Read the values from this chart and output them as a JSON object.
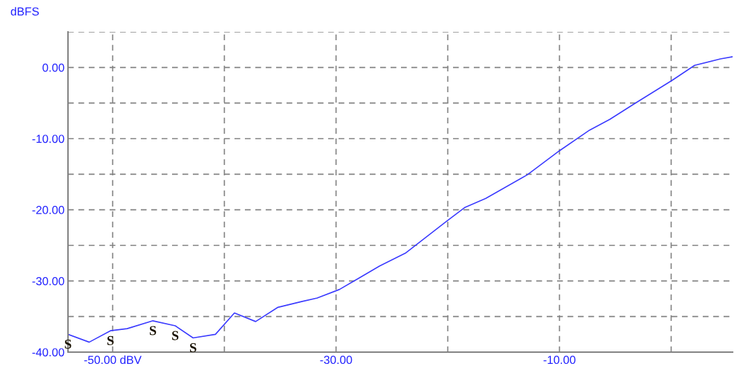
{
  "chart_data": {
    "type": "line",
    "ylabel": "dBFS",
    "series": [
      {
        "color": "#3a3aff",
        "x": [
          -54,
          -52.1,
          -50.2,
          -48.7,
          -46.4,
          -44.4,
          -42.8,
          -40.8,
          -39.1,
          -37.2,
          -35.2,
          -33.1,
          -31.7,
          -29.7,
          -26.1,
          -23.8,
          -20.1,
          -18.5,
          -16.6,
          -12.9,
          -10,
          -7.3,
          -5.5,
          -3.3,
          0.1,
          2.1,
          4.4,
          5.5
        ],
        "values": [
          -37.5,
          -38.6,
          -37.0,
          -36.7,
          -35.6,
          -36.3,
          -38.0,
          -37.5,
          -34.5,
          -35.7,
          -33.7,
          -32.9,
          -32.4,
          -31.2,
          -27.9,
          -26.1,
          -21.6,
          -19.7,
          -18.4,
          -15.1,
          -11.7,
          -8.8,
          -7.3,
          -5.1,
          -1.8,
          0.3,
          1.2,
          1.5
        ]
      }
    ],
    "xlim": [
      -54,
      5.5
    ],
    "ylim": [
      -40,
      5
    ],
    "xticks": [
      {
        "value": -50,
        "label": "-50.00 dBV"
      },
      {
        "value": -40,
        "label": null
      },
      {
        "value": -30,
        "label": "-30.00"
      },
      {
        "value": -20,
        "label": null
      },
      {
        "value": -10,
        "label": "-10.00"
      },
      {
        "value": 0,
        "label": null
      }
    ],
    "yticks": [
      {
        "value": 5,
        "label": null
      },
      {
        "value": 0,
        "label": "0.00"
      },
      {
        "value": -5,
        "label": null
      },
      {
        "value": -10,
        "label": "-10.00"
      },
      {
        "value": -15,
        "label": null
      },
      {
        "value": -20,
        "label": "-20.00"
      },
      {
        "value": -25,
        "label": null
      },
      {
        "value": -30,
        "label": "-30.00"
      },
      {
        "value": -35,
        "label": null
      },
      {
        "value": -40,
        "label": "-40.00"
      }
    ],
    "annotations": [
      {
        "text": "S",
        "x": -54,
        "y": -37.5
      },
      {
        "text": "S",
        "x": -50.2,
        "y": -37.0
      },
      {
        "text": "S",
        "x": -46.4,
        "y": -35.6
      },
      {
        "text": "S",
        "x": -44.4,
        "y": -36.3
      },
      {
        "text": "S",
        "x": -42.8,
        "y": -38.0
      }
    ],
    "grid": true,
    "line_style": "solid",
    "marker": "none",
    "legend": false
  }
}
